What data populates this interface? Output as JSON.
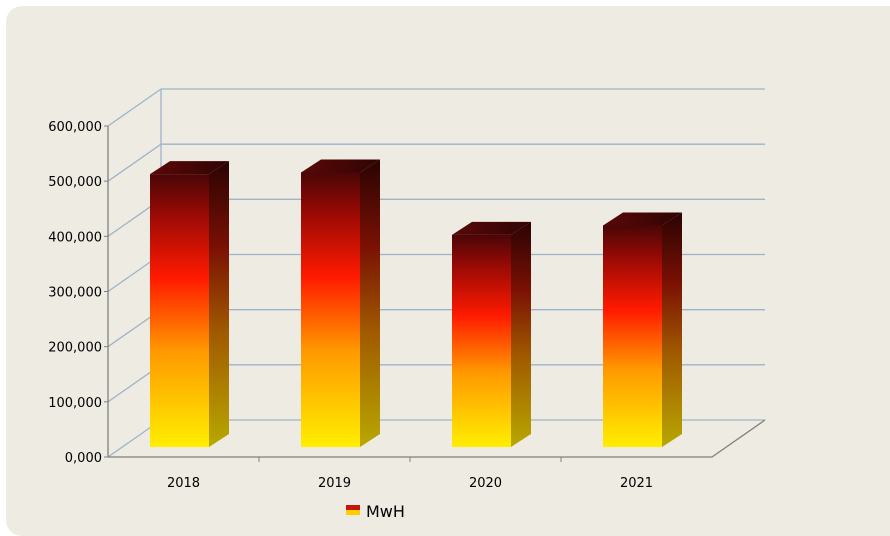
{
  "chart_data": {
    "type": "bar",
    "categories": [
      "2018",
      "2019",
      "2020",
      "2021"
    ],
    "series": [
      {
        "name": "MwH",
        "values": [
          520000,
          523000,
          410000,
          427000
        ]
      }
    ],
    "y_ticks": [
      "0,000",
      "100,000",
      "200,000",
      "300,000",
      "400,000",
      "500,000",
      "600,000"
    ],
    "ylim": [
      0,
      600000
    ],
    "grid": true,
    "legend_position": "bottom",
    "colors": {
      "bar_bottom": "#ffee00",
      "bar_mid": "#ff9900",
      "bar_upper": "#ff1a00",
      "bar_top": "#4a0606",
      "gridline": "#9fb3c8",
      "axis": "#808080",
      "background": "#eeebe2"
    }
  }
}
